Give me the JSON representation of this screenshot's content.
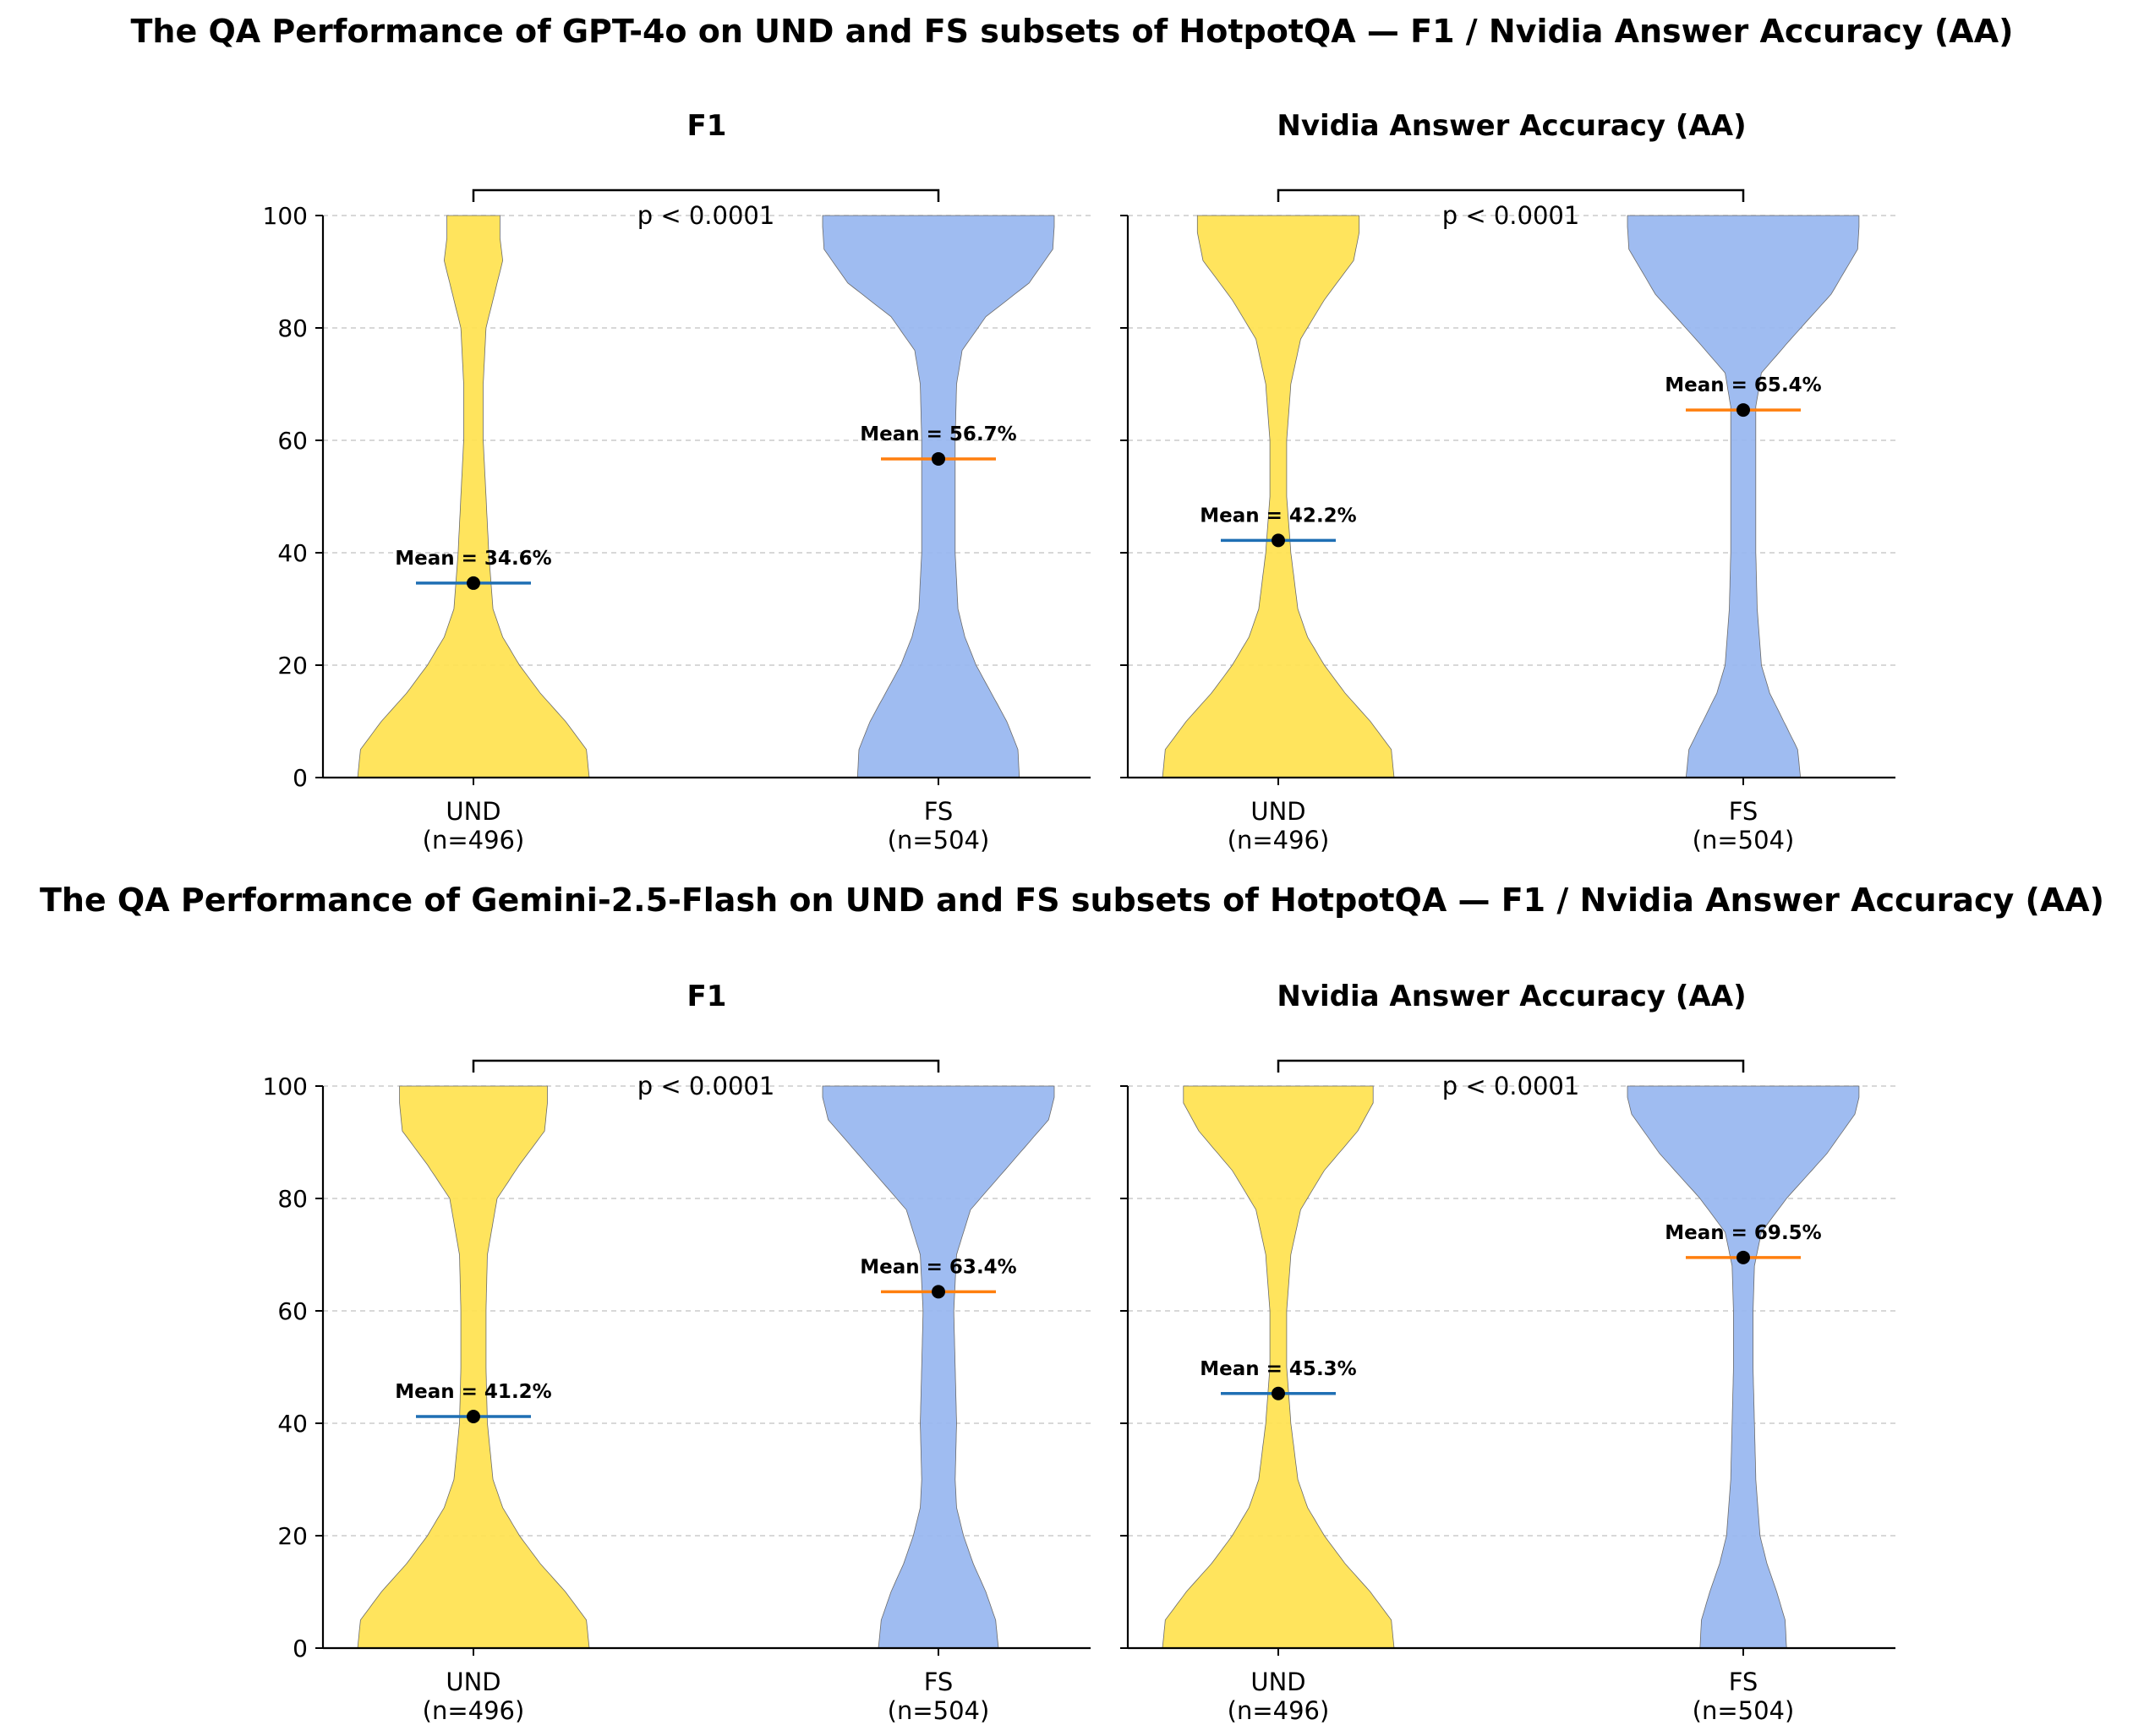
{
  "colors": {
    "und_fill": "#ffe24f",
    "fs_fill": "#97b6f0",
    "und_mean_line": "#1f6fb4",
    "fs_mean_line": "#ff7f0e",
    "grid": "#cccccc"
  },
  "chart_data": [
    {
      "type": "violin",
      "figure_title": "The QA Performance of GPT-4o on UND and FS subsets of HotpotQA — F1 / Nvidia Answer Accuracy (AA)",
      "title": "F1",
      "ylim": [
        0,
        100
      ],
      "yticks": [
        0,
        20,
        40,
        60,
        80,
        100
      ],
      "grid": true,
      "categories": [
        "UND\n(n=496)",
        "FS\n(n=504)"
      ],
      "p_value_label": "p < 0.0001",
      "series": [
        {
          "name": "UND",
          "n": 496,
          "mean": 34.6,
          "mean_label": "Mean = 34.6%",
          "width_profile": [
            [
              0,
              0.83
            ],
            [
              5,
              0.81
            ],
            [
              10,
              0.66
            ],
            [
              15,
              0.48
            ],
            [
              20,
              0.33
            ],
            [
              25,
              0.21
            ],
            [
              30,
              0.14
            ],
            [
              40,
              0.11
            ],
            [
              50,
              0.09
            ],
            [
              60,
              0.07
            ],
            [
              70,
              0.07
            ],
            [
              80,
              0.09
            ],
            [
              88,
              0.17
            ],
            [
              92,
              0.21
            ],
            [
              96,
              0.19
            ],
            [
              100,
              0.19
            ]
          ]
        },
        {
          "name": "FS",
          "n": 504,
          "mean": 56.7,
          "mean_label": "Mean = 56.7%",
          "width_profile": [
            [
              0,
              0.58
            ],
            [
              5,
              0.57
            ],
            [
              10,
              0.49
            ],
            [
              15,
              0.38
            ],
            [
              20,
              0.27
            ],
            [
              25,
              0.19
            ],
            [
              30,
              0.14
            ],
            [
              40,
              0.12
            ],
            [
              50,
              0.12
            ],
            [
              60,
              0.12
            ],
            [
              70,
              0.13
            ],
            [
              76,
              0.17
            ],
            [
              82,
              0.34
            ],
            [
              88,
              0.65
            ],
            [
              94,
              0.82
            ],
            [
              98,
              0.83
            ],
            [
              100,
              0.83
            ]
          ]
        }
      ]
    },
    {
      "type": "violin",
      "title": "Nvidia Answer Accuracy (AA)",
      "ylim": [
        0,
        100
      ],
      "yticks": [
        0,
        20,
        40,
        60,
        80,
        100
      ],
      "grid": true,
      "categories": [
        "UND\n(n=496)",
        "FS\n(n=504)"
      ],
      "p_value_label": "p < 0.0001",
      "series": [
        {
          "name": "UND",
          "n": 496,
          "mean": 42.2,
          "mean_label": "Mean = 42.2%",
          "width_profile": [
            [
              0,
              0.83
            ],
            [
              5,
              0.81
            ],
            [
              10,
              0.66
            ],
            [
              15,
              0.48
            ],
            [
              20,
              0.33
            ],
            [
              25,
              0.21
            ],
            [
              30,
              0.14
            ],
            [
              40,
              0.09
            ],
            [
              50,
              0.06
            ],
            [
              60,
              0.06
            ],
            [
              70,
              0.09
            ],
            [
              78,
              0.16
            ],
            [
              85,
              0.33
            ],
            [
              92,
              0.54
            ],
            [
              97,
              0.58
            ],
            [
              100,
              0.58
            ]
          ]
        },
        {
          "name": "FS",
          "n": 504,
          "mean": 65.4,
          "mean_label": "Mean = 65.4%",
          "width_profile": [
            [
              0,
              0.41
            ],
            [
              5,
              0.39
            ],
            [
              10,
              0.29
            ],
            [
              15,
              0.19
            ],
            [
              20,
              0.13
            ],
            [
              30,
              0.1
            ],
            [
              40,
              0.09
            ],
            [
              50,
              0.09
            ],
            [
              60,
              0.09
            ],
            [
              66,
              0.09
            ],
            [
              72,
              0.13
            ],
            [
              78,
              0.34
            ],
            [
              86,
              0.63
            ],
            [
              94,
              0.82
            ],
            [
              98,
              0.83
            ],
            [
              100,
              0.83
            ]
          ]
        }
      ]
    },
    {
      "type": "violin",
      "figure_title": "The QA Performance of Gemini-2.5-Flash on UND and FS subsets of HotpotQA — F1 / Nvidia Answer Accuracy (AA)",
      "title": "F1",
      "ylim": [
        0,
        100
      ],
      "yticks": [
        0,
        20,
        40,
        60,
        80,
        100
      ],
      "grid": true,
      "categories": [
        "UND\n(n=496)",
        "FS\n(n=504)"
      ],
      "p_value_label": "p < 0.0001",
      "series": [
        {
          "name": "UND",
          "n": 496,
          "mean": 41.2,
          "mean_label": "Mean = 41.2%",
          "width_profile": [
            [
              0,
              0.83
            ],
            [
              5,
              0.81
            ],
            [
              10,
              0.66
            ],
            [
              15,
              0.48
            ],
            [
              20,
              0.33
            ],
            [
              25,
              0.21
            ],
            [
              30,
              0.14
            ],
            [
              40,
              0.1
            ],
            [
              50,
              0.09
            ],
            [
              60,
              0.09
            ],
            [
              70,
              0.1
            ],
            [
              80,
              0.17
            ],
            [
              86,
              0.33
            ],
            [
              92,
              0.51
            ],
            [
              97,
              0.53
            ],
            [
              100,
              0.53
            ]
          ]
        },
        {
          "name": "FS",
          "n": 504,
          "mean": 63.4,
          "mean_label": "Mean = 63.4%",
          "width_profile": [
            [
              0,
              0.43
            ],
            [
              5,
              0.41
            ],
            [
              10,
              0.34
            ],
            [
              15,
              0.25
            ],
            [
              20,
              0.18
            ],
            [
              25,
              0.13
            ],
            [
              30,
              0.12
            ],
            [
              40,
              0.13
            ],
            [
              50,
              0.12
            ],
            [
              60,
              0.11
            ],
            [
              70,
              0.13
            ],
            [
              78,
              0.23
            ],
            [
              86,
              0.51
            ],
            [
              94,
              0.79
            ],
            [
              98,
              0.83
            ],
            [
              100,
              0.83
            ]
          ]
        }
      ]
    },
    {
      "type": "violin",
      "title": "Nvidia Answer Accuracy (AA)",
      "ylim": [
        0,
        100
      ],
      "yticks": [
        0,
        20,
        40,
        60,
        80,
        100
      ],
      "grid": true,
      "categories": [
        "UND\n(n=496)",
        "FS\n(n=504)"
      ],
      "p_value_label": "p < 0.0001",
      "series": [
        {
          "name": "UND",
          "n": 496,
          "mean": 45.3,
          "mean_label": "Mean = 45.3%",
          "width_profile": [
            [
              0,
              0.83
            ],
            [
              5,
              0.81
            ],
            [
              10,
              0.66
            ],
            [
              15,
              0.48
            ],
            [
              20,
              0.33
            ],
            [
              25,
              0.21
            ],
            [
              30,
              0.14
            ],
            [
              40,
              0.09
            ],
            [
              50,
              0.06
            ],
            [
              60,
              0.06
            ],
            [
              70,
              0.09
            ],
            [
              78,
              0.16
            ],
            [
              85,
              0.33
            ],
            [
              92,
              0.57
            ],
            [
              97,
              0.68
            ],
            [
              100,
              0.68
            ]
          ]
        },
        {
          "name": "FS",
          "n": 504,
          "mean": 69.5,
          "mean_label": "Mean = 69.5%",
          "width_profile": [
            [
              0,
              0.31
            ],
            [
              5,
              0.3
            ],
            [
              10,
              0.24
            ],
            [
              15,
              0.17
            ],
            [
              20,
              0.12
            ],
            [
              30,
              0.09
            ],
            [
              40,
              0.08
            ],
            [
              50,
              0.07
            ],
            [
              60,
              0.07
            ],
            [
              68,
              0.08
            ],
            [
              74,
              0.13
            ],
            [
              80,
              0.31
            ],
            [
              88,
              0.6
            ],
            [
              95,
              0.8
            ],
            [
              98,
              0.83
            ],
            [
              100,
              0.83
            ]
          ]
        }
      ]
    }
  ]
}
